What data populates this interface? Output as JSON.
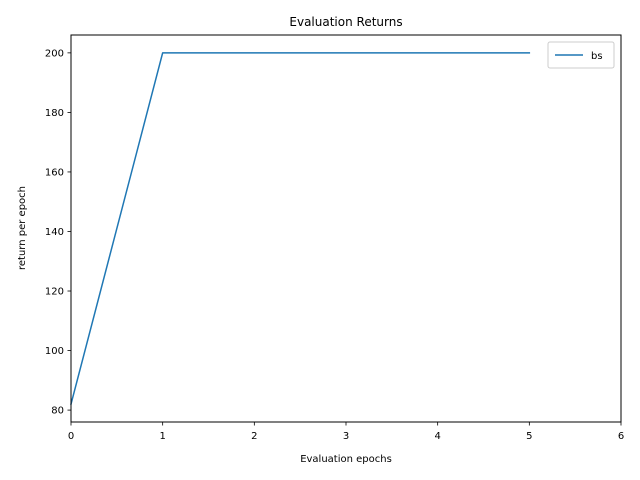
{
  "chart_data": {
    "type": "line",
    "title": "Evaluation Returns",
    "xlabel": "Evaluation epochs",
    "ylabel": "return per epoch",
    "xlim": [
      0,
      6
    ],
    "ylim": [
      76,
      206
    ],
    "xticks": [
      0,
      1,
      2,
      3,
      4,
      5,
      6
    ],
    "yticks": [
      80,
      100,
      120,
      140,
      160,
      180,
      200
    ],
    "grid": false,
    "legend_position": "top-right",
    "series": [
      {
        "name": "bs",
        "color": "#1f77b4",
        "x": [
          0,
          1,
          2,
          3,
          4,
          5
        ],
        "y": [
          82,
          200,
          200,
          200,
          200,
          200
        ]
      }
    ]
  }
}
